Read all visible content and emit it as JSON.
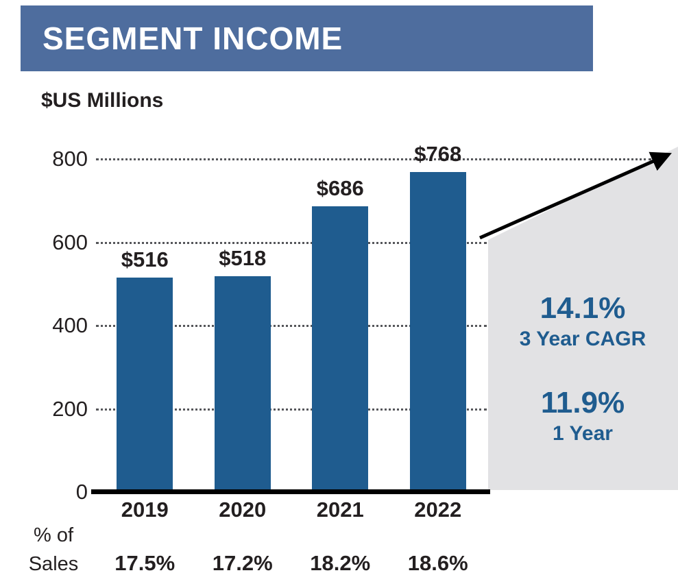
{
  "banner": {
    "title": "SEGMENT INCOME"
  },
  "units_label": "$US Millions",
  "chart_data": {
    "type": "bar",
    "title": "SEGMENT INCOME",
    "ylabel": "$US Millions",
    "categories": [
      "2019",
      "2020",
      "2021",
      "2022"
    ],
    "values": [
      516,
      518,
      686,
      768
    ],
    "bar_labels": [
      "$516",
      "$518",
      "$686",
      "$768"
    ],
    "ylim": [
      0,
      800
    ],
    "yticks": [
      0,
      200,
      400,
      600,
      800
    ],
    "grid": "dotted-horizontal",
    "bar_color": "#1F5C8F",
    "pct_of_sales": {
      "label_line1": "% of",
      "label_line2": "Sales",
      "values": [
        "17.5%",
        "17.2%",
        "18.2%",
        "18.6%"
      ]
    }
  },
  "annotations": {
    "cagr_value": "14.1%",
    "cagr_label": "3 Year CAGR",
    "one_year_value": "11.9%",
    "one_year_label": "1 Year"
  },
  "colors": {
    "banner_bg": "#4E6D9E",
    "bar": "#1F5C8F",
    "annotation_text": "#1F5C8F",
    "trend_area": "#E2E2E4",
    "arrow": "#000000",
    "text": "#231F20"
  }
}
